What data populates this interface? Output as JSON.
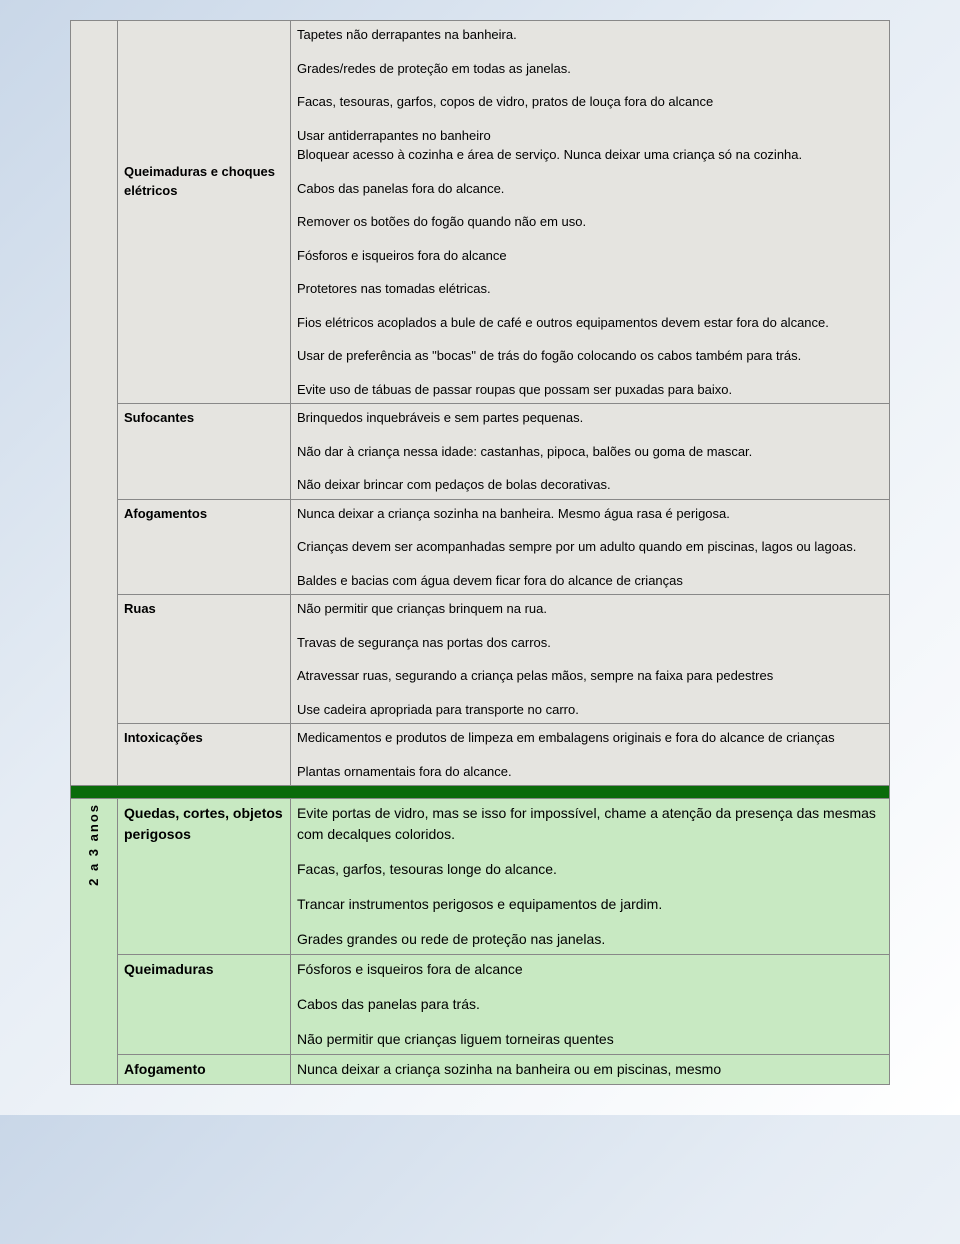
{
  "colors": {
    "section_a_bg": "#e5e4e0",
    "section_b_bg": "#c8e9c2",
    "divider_bg": "#0a6b0a",
    "border": "#888888",
    "page_gradient_start": "#c9d7e8",
    "page_gradient_end": "#ffffff",
    "text": "#000000"
  },
  "fonts": {
    "family": "Verdana",
    "cell_size_pt": 10,
    "age_label_size_pt": 14,
    "section_b_cell_size_pt": 11
  },
  "section_a": {
    "age_label": "",
    "rows": [
      {
        "category": "Queimaduras e choques elétricos",
        "lines": [
          "Tapetes não derrapantes na banheira.",
          "Grades/redes de proteção em todas as janelas.",
          "Facas, tesouras, garfos, copos de vidro, pratos de louça fora do alcance",
          "Usar antiderrapantes no banheiro",
          "Bloquear acesso à cozinha e área de serviço. Nunca deixar uma criança só na cozinha.",
          "Cabos das panelas fora do alcance.",
          "Remover os botões do fogão quando não em uso.",
          "Fósforos e isqueiros fora do alcance",
          "Protetores nas tomadas elétricas.",
          "Fios elétricos acoplados a bule de café e outros equipamentos devem estar fora do alcance.",
          "Usar de preferência as \"bocas\" de trás do fogão colocando os cabos também para trás.",
          "Evite uso de tábuas de passar roupas que possam ser puxadas para baixo."
        ],
        "category_offset_lines": 4
      },
      {
        "category": "Sufocantes",
        "lines": [
          "Brinquedos inquebráveis e sem partes pequenas.",
          "Não dar à criança nessa idade: castanhas, pipoca, balões ou goma de mascar.",
          "Não deixar brincar com pedaços de bolas decorativas."
        ]
      },
      {
        "category": "Afogamentos",
        "lines": [
          "Nunca deixar a criança sozinha na banheira. Mesmo água rasa é perigosa.",
          "Crianças devem ser acompanhadas sempre por um adulto quando em piscinas, lagos ou lagoas.",
          "Baldes e bacias com água devem ficar fora do alcance de crianças"
        ]
      },
      {
        "category": "Ruas",
        "lines": [
          "Não permitir que crianças brinquem na rua.",
          "Travas de segurança nas portas dos carros.",
          "Atravessar ruas, segurando a criança pelas mãos, sempre na faixa para pedestres",
          "Use cadeira apropriada para transporte no carro."
        ]
      },
      {
        "category": "Intoxicações",
        "lines": [
          "Medicamentos e produtos de limpeza em embalagens originais e fora do alcance de crianças",
          "Plantas ornamentais fora do alcance."
        ]
      }
    ]
  },
  "section_b": {
    "age_label": "2 a 3 anos",
    "rows": [
      {
        "category": "Quedas, cortes, objetos perigosos",
        "lines": [
          "Evite portas de vidro, mas se isso for impossível, chame a atenção da presença das mesmas com decalques coloridos.",
          "Facas, garfos, tesouras longe do alcance.",
          "Trancar instrumentos perigosos e equipamentos de jardim.",
          "Grades grandes ou rede de proteção nas janelas."
        ]
      },
      {
        "category": "Queimaduras",
        "lines": [
          "Fósforos e isqueiros fora de alcance",
          "Cabos das panelas para trás.",
          "Não permitir que crianças liguem torneiras quentes"
        ]
      },
      {
        "category": "Afogamento",
        "lines": [
          "Nunca deixar a criança sozinha na banheira ou em piscinas, mesmo"
        ]
      }
    ]
  }
}
